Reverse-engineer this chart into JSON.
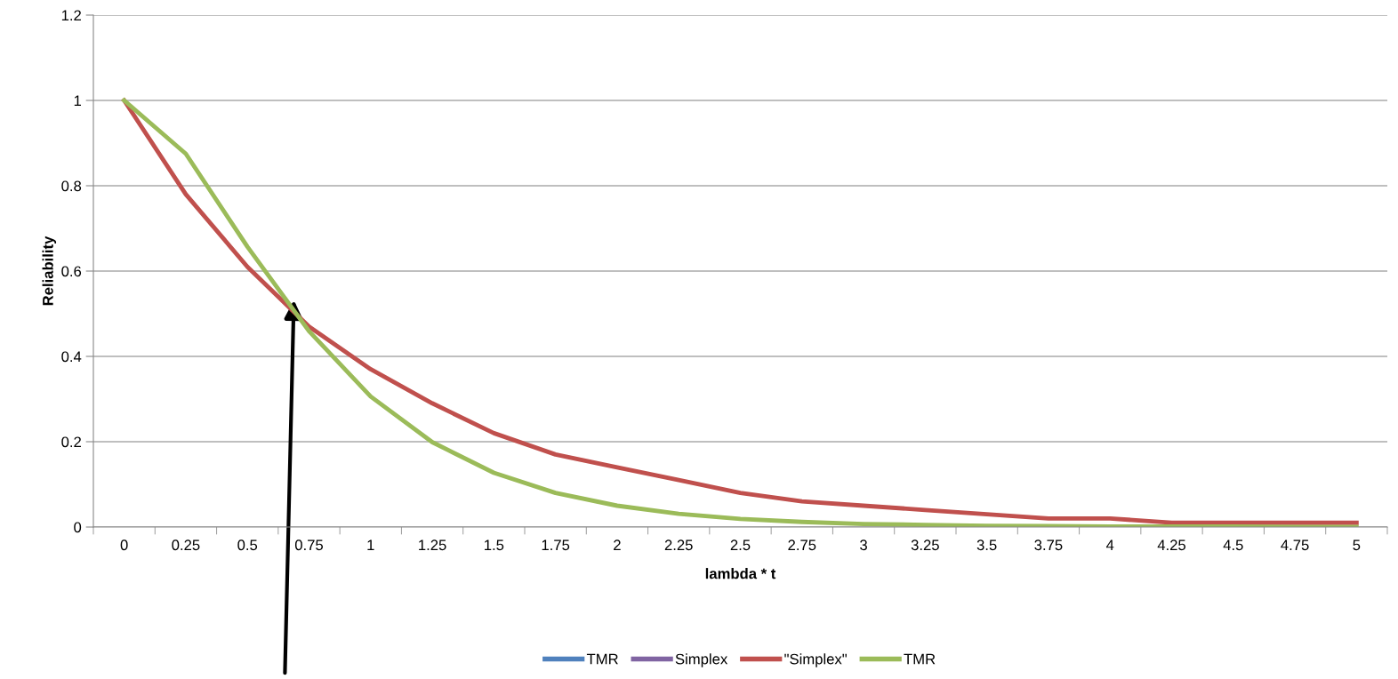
{
  "chart_data": {
    "type": "line",
    "xlabel": "lambda * t",
    "ylabel": "Reliability",
    "categories": [
      "0",
      "0.25",
      "0.5",
      "0.75",
      "1",
      "1.25",
      "1.5",
      "1.75",
      "2",
      "2.25",
      "2.5",
      "2.75",
      "3",
      "3.25",
      "3.5",
      "3.75",
      "4",
      "4.25",
      "4.5",
      "4.75",
      "5"
    ],
    "series": [
      {
        "name": "TMR",
        "color": "#4f81bd",
        "values": [
          null,
          null,
          null,
          null,
          null,
          null,
          null,
          null,
          null,
          null,
          null,
          null,
          null,
          null,
          null,
          null,
          null,
          null,
          null,
          null,
          null
        ]
      },
      {
        "name": "Simplex",
        "color": "#8064a2",
        "values": [
          null,
          null,
          null,
          null,
          null,
          null,
          null,
          null,
          null,
          null,
          null,
          null,
          null,
          null,
          null,
          null,
          null,
          null,
          null,
          null,
          null
        ]
      },
      {
        "name": "\"Simplex\"",
        "color": "#c0504d",
        "values": [
          1,
          0.78,
          0.61,
          0.47,
          0.37,
          0.29,
          0.22,
          0.17,
          0.14,
          0.11,
          0.08,
          0.06,
          0.05,
          0.04,
          0.03,
          0.02,
          0.02,
          0.01,
          0.01,
          0.01,
          0.01
        ]
      },
      {
        "name": "TMR",
        "color": "#9bbb59",
        "values": [
          1,
          0.875,
          0.657,
          0.459,
          0.306,
          0.199,
          0.127,
          0.08,
          0.05,
          0.031,
          0.019,
          0.012,
          0.007,
          0.005,
          0.003,
          0.002,
          0.001,
          0.001,
          0.001,
          0,
          0
        ]
      }
    ],
    "ylim": [
      0,
      1.2
    ],
    "yticks": [
      0,
      0.2,
      0.4,
      0.6,
      0.8,
      1,
      1.2
    ],
    "grid": "y",
    "legend": "bottom",
    "marker": "none",
    "line_style": "solid"
  }
}
